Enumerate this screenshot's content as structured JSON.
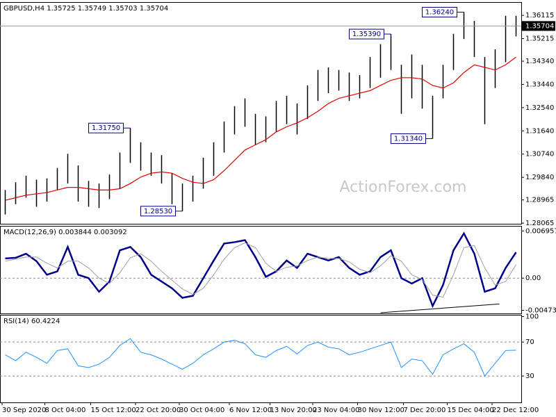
{
  "chart_data": [
    {
      "type": "ohlc",
      "title": "GBPUSD,H4  1.35725 1.35749 1.35703 1.35704",
      "color": "#000000",
      "xlim": [
        0,
        50
      ],
      "ylim": [
        1.2804,
        1.3663
      ],
      "yticks": [
        1.36115,
        1.35215,
        {
          "value": 1.3434,
          "label": "1.34340"
        },
        {
          "value": 1.3344,
          "label": "1.33440"
        },
        {
          "value": 1.3254,
          "label": "1.32540"
        },
        {
          "value": 1.3164,
          "label": "1.31640"
        },
        {
          "value": 1.3074,
          "label": "1.30740"
        },
        {
          "value": 1.2984,
          "label": "1.29840"
        },
        1.28965,
        1.28065
      ],
      "high": [
        1.2935,
        1.2965,
        1.299,
        1.2975,
        1.298,
        1.302,
        1.3075,
        1.303,
        1.297,
        1.296,
        1.2995,
        1.308,
        1.3175,
        1.312,
        1.308,
        1.307,
        1.3,
        1.296,
        1.299,
        1.306,
        1.312,
        1.32,
        1.326,
        1.329,
        1.323,
        1.322,
        1.328,
        1.33,
        1.327,
        1.334,
        1.34,
        1.341,
        1.34,
        1.339,
        1.338,
        1.345,
        1.35,
        1.3539,
        1.342,
        1.346,
        1.342,
        1.33,
        1.342,
        1.354,
        1.3624,
        1.359,
        1.345,
        1.348,
        1.361,
        1.361
      ],
      "low": [
        1.284,
        1.288,
        1.2905,
        1.287,
        1.289,
        1.2935,
        1.296,
        1.289,
        1.287,
        1.2865,
        1.29,
        1.294,
        1.304,
        1.301,
        1.299,
        1.296,
        1.288,
        1.2853,
        1.289,
        1.294,
        1.299,
        1.308,
        1.315,
        1.318,
        1.311,
        1.312,
        1.316,
        1.319,
        1.315,
        1.321,
        1.328,
        1.331,
        1.332,
        1.328,
        1.329,
        1.333,
        1.337,
        1.34,
        1.323,
        1.329,
        1.325,
        1.3134,
        1.329,
        1.34,
        1.352,
        1.345,
        1.319,
        1.333,
        1.343,
        1.353
      ],
      "overlays": [
        {
          "color": "#e00000",
          "values": [
            1.2895,
            1.2905,
            1.2915,
            1.292,
            1.2925,
            1.2935,
            1.2945,
            1.2945,
            1.294,
            1.2935,
            1.2935,
            1.294,
            1.296,
            1.2985,
            1.3,
            1.3005,
            1.3,
            1.298,
            1.2965,
            1.296,
            1.2975,
            1.301,
            1.305,
            1.309,
            1.311,
            1.313,
            1.316,
            1.318,
            1.3195,
            1.3215,
            1.324,
            1.327,
            1.329,
            1.33,
            1.331,
            1.332,
            1.334,
            1.336,
            1.337,
            1.337,
            1.3365,
            1.334,
            1.333,
            1.335,
            1.339,
            1.342,
            1.341,
            1.34,
            1.342,
            1.345
          ]
        }
      ],
      "last": {
        "value": 1.35704,
        "label": "1.35704"
      },
      "annotations": [
        {
          "x": 44.5,
          "value": 1.3624,
          "label": "1.36240"
        },
        {
          "x": 37.5,
          "value": 1.3539,
          "label": "1.35390"
        },
        {
          "x": 12.5,
          "value": 1.3175,
          "label": "1.31750"
        },
        {
          "x": 17.5,
          "value": 1.2853,
          "label": "1.28530"
        },
        {
          "x": 41.5,
          "value": 1.3134,
          "label": "1.31340"
        }
      ],
      "watermark": "ActionForex.com"
    },
    {
      "type": "line",
      "title": "MACD(12,26,9) 0.003844 0.003092",
      "xlim": [
        0,
        50
      ],
      "ylim": [
        -0.0052,
        0.0077
      ],
      "yticks": [
        0.006957,
        {
          "value": 0,
          "label": "0.00"
        },
        -0.004736
      ],
      "levels": [
        0
      ],
      "series": [
        {
          "color": "#00008b",
          "width": 2.5,
          "values": [
            0.0029,
            0.003,
            0.0036,
            0.0025,
            0.0005,
            0.001,
            0.0046,
            0.0005,
            0.0,
            -0.002,
            -0.0005,
            0.0041,
            0.0046,
            0.0031,
            0.0005,
            -0.0005,
            -0.0015,
            -0.0029,
            -0.0026,
            0.0,
            0.0026,
            0.0051,
            0.0053,
            0.0056,
            0.0031,
            0.0002,
            0.001,
            0.0026,
            0.0015,
            0.0036,
            0.0031,
            0.0026,
            0.0031,
            0.0015,
            0.0005,
            0.001,
            0.0031,
            0.0041,
            0.0,
            -0.0008,
            0.0,
            -0.0041,
            -0.001,
            0.0041,
            0.0066,
            0.0036,
            -0.002,
            -0.0015,
            0.0015,
            0.0038
          ]
        },
        {
          "color": "#a0a0a0",
          "width": 1,
          "values": [
            0.0025,
            0.0028,
            0.0031,
            0.0031,
            0.0022,
            0.0015,
            0.0025,
            0.0025,
            0.0015,
            0.0,
            -0.0008,
            0.0008,
            0.003,
            0.0036,
            0.0025,
            0.001,
            -0.0003,
            -0.0016,
            -0.0024,
            -0.0015,
            0.0005,
            0.0028,
            0.0045,
            0.0052,
            0.0045,
            0.0022,
            0.001,
            0.0016,
            0.0018,
            0.0026,
            0.0031,
            0.0029,
            0.0029,
            0.0024,
            0.0013,
            0.0008,
            0.0018,
            0.0033,
            0.0025,
            0.0005,
            -0.0002,
            -0.0025,
            -0.0028,
            0.0005,
            0.0045,
            0.0048,
            0.0015,
            -0.001,
            -0.0005,
            0.002
          ]
        }
      ],
      "trendline": {
        "x": [
          36.5,
          47.9
        ],
        "values": [
          -0.0051,
          -0.0038
        ]
      }
    },
    {
      "type": "line",
      "title": "RSI(14) 60.4224",
      "xlim": [
        0,
        50
      ],
      "ylim": [
        -1,
        102
      ],
      "yticks": [
        100,
        70,
        30
      ],
      "levels": [
        70,
        30
      ],
      "series": [
        {
          "color": "#1e90ff",
          "width": 1,
          "values": [
            55,
            48,
            58,
            52,
            45,
            60,
            62,
            42,
            40,
            44,
            52,
            66,
            74,
            58,
            55,
            50,
            44,
            38,
            45,
            55,
            62,
            70,
            72,
            68,
            55,
            52,
            60,
            65,
            56,
            66,
            70,
            64,
            62,
            55,
            58,
            62,
            66,
            70,
            40,
            50,
            48,
            32,
            55,
            62,
            68,
            58,
            30,
            45,
            60,
            60.4
          ]
        }
      ],
      "xticks": [
        {
          "value": 0.2,
          "label": "30 Sep 2020"
        },
        {
          "value": 4.3,
          "label": "8 Oct 04:00"
        },
        {
          "value": 8.7,
          "label": "15 Oct 12:00"
        },
        {
          "value": 13,
          "label": "22 Oct 20:00"
        },
        {
          "value": 17.2,
          "label": "30 Oct 04:00"
        },
        {
          "value": 22,
          "label": "6 Nov 12:00"
        },
        {
          "value": 25.9,
          "label": "13 Nov 20:00"
        },
        {
          "value": 30,
          "label": "23 Nov 04:00"
        },
        {
          "value": 34.3,
          "label": "30 Nov 12:00"
        },
        {
          "value": 38.7,
          "label": "7 Dec 20:00"
        },
        {
          "value": 42.9,
          "label": "15 Dec 04:00"
        },
        {
          "value": 47.2,
          "label": "22 Dec 12:00"
        }
      ]
    }
  ]
}
